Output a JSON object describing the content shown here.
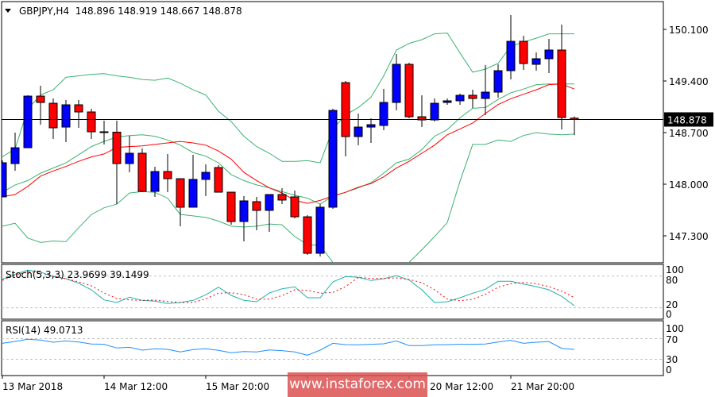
{
  "chart_data": {
    "type": "candlestick",
    "symbol_header": "GBPJPY,H4  148.896 148.919 148.667 148.878",
    "current_price": "148.878",
    "price_axis": {
      "ticks": [
        "150.100",
        "149.400",
        "148.700",
        "148.000",
        "147.300"
      ],
      "range": [
        146.9,
        150.4
      ]
    },
    "colors": {
      "bull": "#0000ff",
      "bear": "#ff0000",
      "bollinger": "#3cb371",
      "ma": "#ff0000",
      "stoch_main": "#20b2aa",
      "stoch_signal": "#ff0000",
      "rsi": "#1e90ff"
    },
    "candles": [
      [
        147.828,
        148.323,
        147.828,
        148.291
      ],
      [
        148.28,
        148.7,
        148.183,
        148.495
      ],
      [
        148.495,
        149.206,
        148.495,
        149.195
      ],
      [
        149.195,
        149.335,
        148.808,
        149.109
      ],
      [
        149.098,
        149.163,
        148.614,
        148.765
      ],
      [
        148.775,
        149.142,
        148.571,
        149.077
      ],
      [
        149.077,
        149.142,
        148.765,
        148.98
      ],
      [
        148.98,
        149.023,
        148.614,
        148.711
      ],
      [
        148.711,
        148.861,
        148.538,
        148.706
      ],
      [
        148.706,
        148.861,
        147.731,
        148.28
      ],
      [
        148.28,
        148.657,
        148.161,
        148.42
      ],
      [
        148.42,
        148.485,
        147.892,
        147.903
      ],
      [
        147.903,
        148.237,
        147.828,
        148.172
      ],
      [
        148.172,
        148.409,
        147.892,
        148.075
      ],
      [
        148.075,
        148.075,
        147.429,
        147.688
      ],
      [
        147.688,
        148.398,
        147.688,
        148.065
      ],
      [
        148.065,
        148.269,
        147.838,
        148.161
      ],
      [
        148.226,
        148.258,
        147.892,
        147.892
      ],
      [
        147.892,
        147.892,
        147.451,
        147.494
      ],
      [
        147.494,
        147.838,
        147.224,
        147.774
      ],
      [
        147.763,
        147.828,
        147.375,
        147.645
      ],
      [
        147.645,
        147.86,
        147.354,
        147.86
      ],
      [
        147.86,
        147.946,
        147.731,
        147.785
      ],
      [
        147.828,
        147.914,
        147.537,
        147.558
      ],
      [
        147.558,
        147.58,
        147.041,
        147.063
      ],
      [
        147.063,
        147.731,
        147.02,
        147.688
      ],
      [
        147.688,
        149.023,
        147.666,
        149.001
      ],
      [
        149.378,
        149.4,
        148.377,
        148.646
      ],
      [
        148.646,
        148.958,
        148.528,
        148.775
      ],
      [
        148.775,
        148.894,
        148.56,
        148.808
      ],
      [
        148.797,
        149.292,
        148.732,
        149.109
      ],
      [
        149.109,
        149.766,
        149.001,
        149.626
      ],
      [
        149.626,
        149.648,
        148.894,
        148.915
      ],
      [
        148.915,
        149.206,
        148.775,
        148.872
      ],
      [
        148.872,
        149.163,
        148.851,
        149.098
      ],
      [
        149.109,
        149.163,
        149.077,
        149.131
      ],
      [
        149.131,
        149.228,
        149.077,
        149.206
      ],
      [
        149.206,
        149.281,
        149.034,
        149.163
      ],
      [
        149.163,
        149.615,
        148.937,
        149.249
      ],
      [
        149.249,
        149.626,
        149.174,
        149.54
      ],
      [
        149.54,
        150.294,
        149.422,
        149.938
      ],
      [
        149.938,
        150.014,
        149.551,
        149.637
      ],
      [
        149.626,
        149.788,
        149.54,
        149.702
      ],
      [
        149.702,
        149.971,
        149.508,
        149.82
      ],
      [
        149.82,
        150.165,
        148.743,
        148.905
      ],
      [
        148.896,
        148.919,
        148.667,
        148.878
      ]
    ],
    "bollinger_upper": [
      148.37,
      148.48,
      149.02,
      149.21,
      149.28,
      149.45,
      149.47,
      149.49,
      149.5,
      149.47,
      149.45,
      149.42,
      149.41,
      149.44,
      149.37,
      149.28,
      149.21,
      148.99,
      148.85,
      148.65,
      148.51,
      148.42,
      148.31,
      148.31,
      148.32,
      148.29,
      148.75,
      148.94,
      149.04,
      149.18,
      149.47,
      149.82,
      149.91,
      149.96,
      150.04,
      150.05,
      149.78,
      149.52,
      149.56,
      149.64,
      149.87,
      149.93,
      149.98,
      150.04,
      150.04,
      150.04
    ],
    "bollinger_middle": [
      147.89,
      147.99,
      148.05,
      148.15,
      148.22,
      148.29,
      148.4,
      148.51,
      148.58,
      148.64,
      148.66,
      148.67,
      148.65,
      148.6,
      148.53,
      148.43,
      148.38,
      148.29,
      148.13,
      148.05,
      147.99,
      147.95,
      147.9,
      147.85,
      147.81,
      147.73,
      147.84,
      147.89,
      147.95,
      148.02,
      148.15,
      148.29,
      148.34,
      148.47,
      148.65,
      148.74,
      148.9,
      149.03,
      149.04,
      149.15,
      149.24,
      149.29,
      149.35,
      149.36,
      149.36,
      149.36
    ],
    "bollinger_lower": [
      147.43,
      147.47,
      147.27,
      147.21,
      147.23,
      147.22,
      147.41,
      147.59,
      147.68,
      147.73,
      147.88,
      147.9,
      147.89,
      147.81,
      147.59,
      147.57,
      147.55,
      147.5,
      147.43,
      147.42,
      147.43,
      147.46,
      147.45,
      147.29,
      147.18,
      147.17,
      146.94,
      146.78,
      146.73,
      146.71,
      146.73,
      146.78,
      146.94,
      147.11,
      147.29,
      147.48,
      148.04,
      148.54,
      148.54,
      148.6,
      148.58,
      148.66,
      148.7,
      148.68,
      148.67,
      148.68
    ],
    "moving_average": [
      147.83,
      147.86,
      147.97,
      148.11,
      148.18,
      148.24,
      148.31,
      148.37,
      148.41,
      148.5,
      148.51,
      148.52,
      148.54,
      148.56,
      148.58,
      148.56,
      148.53,
      148.45,
      148.34,
      148.16,
      148.05,
      147.95,
      147.88,
      147.78,
      147.74,
      147.78,
      147.84,
      147.89,
      147.96,
      148.01,
      148.1,
      148.22,
      148.31,
      148.42,
      148.53,
      148.67,
      148.75,
      148.83,
      148.96,
      149.08,
      149.16,
      149.22,
      149.28,
      149.35,
      149.36,
      149.29
    ],
    "stochastic": {
      "label": "Stoch(5,3,3) 23.9699 39.1499",
      "levels": [
        80,
        20
      ],
      "axis_ticks": [
        "100",
        "80",
        "20",
        "0"
      ],
      "main": [
        74,
        83.5,
        91,
        87.5,
        79,
        75,
        66.5,
        54,
        35,
        30,
        40,
        34,
        32.5,
        28,
        30,
        34,
        44.5,
        59,
        43.5,
        34,
        31.5,
        48,
        56,
        59.5,
        39,
        39,
        69,
        79,
        77.5,
        71.5,
        75,
        80.5,
        72.5,
        54,
        30,
        31.5,
        39,
        47.5,
        55,
        70,
        70,
        65,
        60,
        54,
        41.5,
        23.9699
      ],
      "signal": [
        72,
        81.5,
        88,
        86,
        80,
        75,
        69,
        61.5,
        48,
        37.5,
        35,
        34,
        34.5,
        32,
        30,
        30,
        37,
        47.5,
        48.5,
        45,
        36.5,
        36.5,
        43,
        54,
        53,
        47.5,
        49,
        60,
        77.5,
        75.5,
        75.5,
        76.5,
        73.5,
        67.5,
        54,
        36.5,
        33.5,
        36,
        45.5,
        59,
        65.5,
        68,
        65.5,
        60,
        51.5,
        39.1499
      ]
    },
    "rsi": {
      "label": "RSI(14) 49.0713",
      "levels": [
        70,
        30
      ],
      "axis_ticks": [
        "100",
        "70",
        "30",
        "0"
      ],
      "values": [
        61.0,
        64.6,
        68.7,
        67.2,
        63.1,
        65.6,
        63.6,
        59.5,
        59.0,
        51.8,
        53.3,
        47.7,
        50.3,
        49.2,
        44.1,
        48.7,
        50.3,
        47.2,
        42.6,
        45.1,
        44.1,
        48.2,
        46.7,
        44.1,
        38.0,
        47.7,
        61.0,
        58.5,
        58.0,
        59.0,
        60.0,
        65.6,
        56.4,
        56.4,
        58.0,
        58.5,
        59.0,
        59.0,
        59.5,
        63.6,
        66.7,
        61.0,
        63.1,
        64.1,
        51.3,
        49.0713
      ]
    },
    "x_ticks": [
      {
        "label": "13 Mar 2018",
        "index": 0
      },
      {
        "label": "14 Mar 12:00",
        "index": 8
      },
      {
        "label": "15 Mar 20:00",
        "index": 16
      },
      {
        "label": "",
        "index": 24
      },
      {
        "label": "20 Mar 12:00",
        "index": 32
      },
      {
        "label": "21 Mar 20:00",
        "index": 40
      }
    ]
  },
  "watermark": "www.instaforex.com"
}
